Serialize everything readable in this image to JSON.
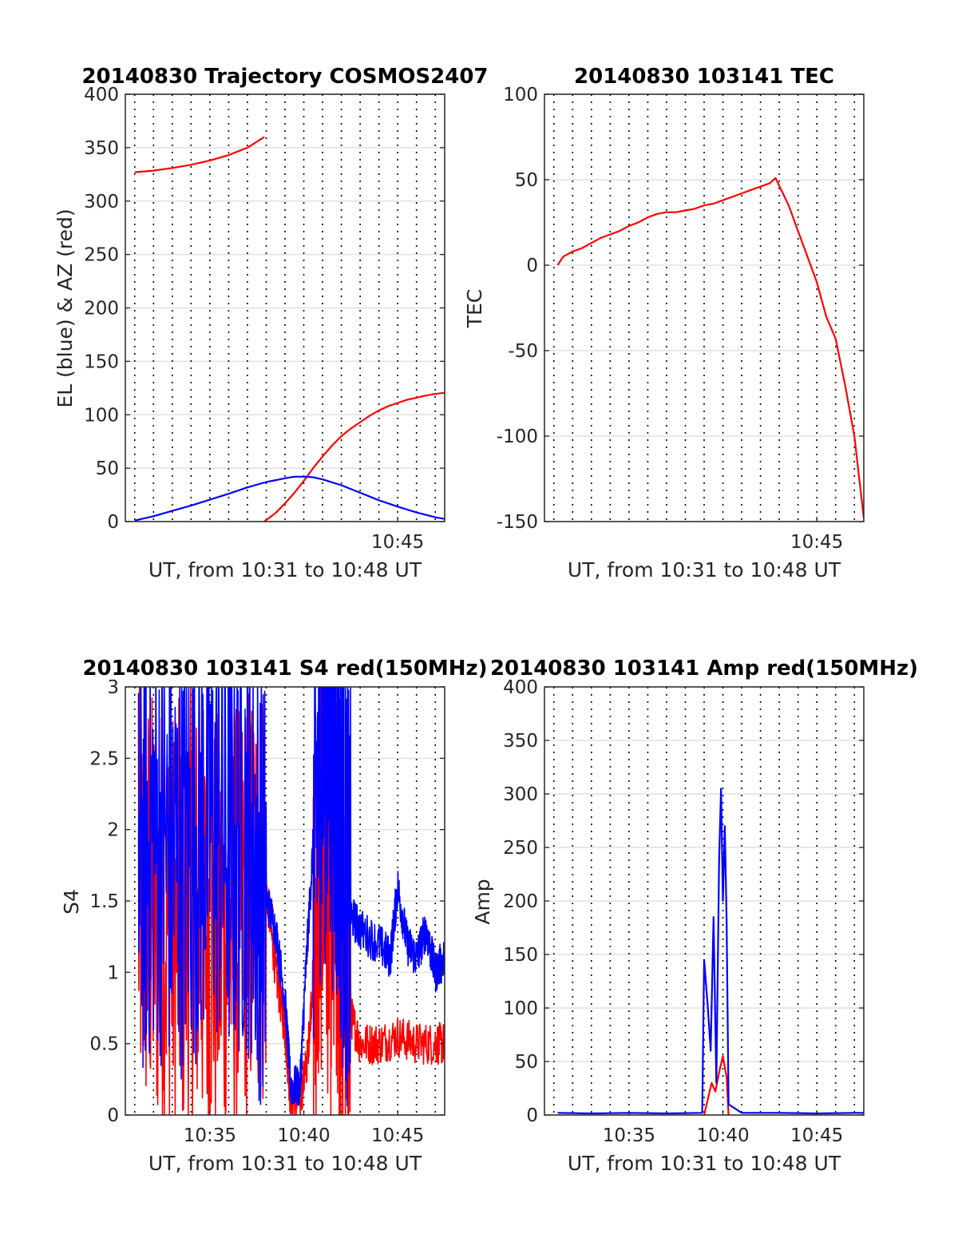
{
  "chart_data": [
    {
      "type": "line",
      "title": "20140830 Trajectory COSMOS2407",
      "xlabel": "UT, from 10:31 to 10:48 UT",
      "ylabel": "EL (blue) & AZ (red)",
      "xlim": [
        10.5,
        27.5
      ],
      "ylim": [
        0,
        400
      ],
      "yticks": [
        0,
        50,
        100,
        150,
        200,
        250,
        300,
        350,
        400
      ],
      "xtick_labels": [
        {
          "x": 25,
          "label": "10:45"
        }
      ],
      "grid": true,
      "series": [
        {
          "color": "#ff0000",
          "segments": [
            [
              [
                11,
                327
              ],
              [
                12,
                328.5
              ],
              [
                13,
                331
              ],
              [
                14,
                334
              ],
              [
                15,
                338
              ],
              [
                16,
                343
              ],
              [
                17,
                350
              ],
              [
                17.9,
                360
              ]
            ],
            [
              [
                17.9,
                0
              ],
              [
                18.5,
                8
              ],
              [
                19,
                17
              ],
              [
                19.5,
                27
              ],
              [
                20,
                38
              ],
              [
                20.5,
                50
              ],
              [
                21,
                61
              ],
              [
                21.5,
                71
              ],
              [
                22,
                80
              ],
              [
                22.5,
                87
              ],
              [
                23,
                93
              ],
              [
                23.5,
                99
              ],
              [
                24,
                104
              ],
              [
                24.5,
                108
              ],
              [
                25,
                111
              ],
              [
                25.5,
                114
              ],
              [
                26,
                116
              ],
              [
                26.5,
                118
              ],
              [
                27,
                119.5
              ],
              [
                27.5,
                120.5
              ]
            ]
          ]
        },
        {
          "color": "#0000ff",
          "segments": [
            [
              [
                11,
                1
              ],
              [
                12,
                5
              ],
              [
                13,
                10
              ],
              [
                14,
                15
              ],
              [
                15,
                20.5
              ],
              [
                16,
                26
              ],
              [
                17,
                32
              ],
              [
                18,
                37
              ],
              [
                19,
                40.5
              ],
              [
                19.5,
                42
              ],
              [
                20,
                42
              ],
              [
                20.5,
                41.5
              ],
              [
                21,
                39.5
              ],
              [
                22,
                34
              ],
              [
                23,
                27
              ],
              [
                24,
                20
              ],
              [
                25,
                14
              ],
              [
                26,
                8.5
              ],
              [
                27,
                4
              ],
              [
                27.5,
                2.5
              ]
            ]
          ]
        }
      ]
    },
    {
      "type": "line",
      "title": "20140830 103141 TEC",
      "xlabel": "UT, from 10:31 to 10:48 UT",
      "ylabel": "TEC",
      "xlim": [
        10.5,
        27.5
      ],
      "ylim": [
        -150,
        100
      ],
      "yticks": [
        -150,
        -100,
        -50,
        0,
        50,
        100
      ],
      "xtick_labels": [
        {
          "x": 25,
          "label": "10:45"
        }
      ],
      "grid": true,
      "series": [
        {
          "color": "#ff0000",
          "segments": [
            [
              [
                11.2,
                0
              ],
              [
                11.5,
                5
              ],
              [
                12,
                8
              ],
              [
                12.5,
                10
              ],
              [
                13,
                13
              ],
              [
                13.5,
                16
              ],
              [
                14,
                18
              ],
              [
                14.5,
                20
              ],
              [
                15,
                23
              ],
              [
                15.5,
                25
              ],
              [
                16,
                28
              ],
              [
                16.5,
                30
              ],
              [
                17,
                31
              ],
              [
                17.5,
                31
              ],
              [
                18,
                32
              ],
              [
                18.5,
                33
              ],
              [
                19,
                35
              ],
              [
                19.5,
                36
              ],
              [
                20,
                38
              ],
              [
                20.5,
                40
              ],
              [
                21,
                42
              ],
              [
                21.5,
                44
              ],
              [
                22,
                46
              ],
              [
                22.5,
                48
              ],
              [
                22.8,
                51
              ],
              [
                23.5,
                35
              ],
              [
                24,
                20
              ],
              [
                24.5,
                5
              ],
              [
                25,
                -10
              ],
              [
                25.5,
                -30
              ],
              [
                26,
                -43
              ],
              [
                26.5,
                -70
              ],
              [
                27,
                -100
              ],
              [
                27.5,
                -148
              ]
            ]
          ]
        }
      ]
    },
    {
      "type": "line",
      "title": "20140830 103141 S4 red(150MHz)",
      "xlabel": "UT, from 10:31 to 10:48 UT",
      "ylabel": "S4",
      "xlim": [
        10.5,
        27.5
      ],
      "ylim": [
        0,
        3
      ],
      "yticks": [
        0,
        0.5,
        1,
        1.5,
        2,
        2.5,
        3
      ],
      "ytick_labels": [
        "0",
        "0.5",
        "1",
        "1.5",
        "2",
        "2.5",
        "3"
      ],
      "xtick_labels": [
        {
          "x": 15,
          "label": "10:35"
        },
        {
          "x": 20,
          "label": "10:40"
        },
        {
          "x": 25,
          "label": "10:45"
        }
      ],
      "grid": true,
      "noisy": true,
      "series": [
        {
          "color": "#ff0000",
          "segments": [
            [
              [
                11.2,
                1.5
              ],
              [
                12,
                1.4
              ],
              [
                13,
                1.3
              ],
              [
                14,
                1.4
              ],
              [
                15,
                1.3
              ],
              [
                16,
                1.2
              ],
              [
                17,
                1.5
              ],
              [
                18,
                1.6
              ],
              [
                18.5,
                1.0
              ],
              [
                19,
                0.6
              ],
              [
                19.3,
                0.1
              ],
              [
                19.8,
                0.1
              ],
              [
                20.2,
                0.4
              ],
              [
                20.6,
                1.2
              ],
              [
                21,
                2.0
              ],
              [
                21.5,
                1.5
              ],
              [
                22,
                1.2
              ],
              [
                22.5,
                0.7
              ],
              [
                23,
                0.5
              ],
              [
                24,
                0.5
              ],
              [
                25,
                0.55
              ],
              [
                26,
                0.5
              ],
              [
                27,
                0.5
              ],
              [
                27.5,
                0.5
              ]
            ]
          ]
        },
        {
          "color": "#0000ff",
          "segments": [
            [
              [
                11.2,
                1.7
              ],
              [
                12,
                2.0
              ],
              [
                13,
                1.8
              ],
              [
                14,
                1.9
              ],
              [
                15,
                2.1
              ],
              [
                16,
                1.9
              ],
              [
                17,
                2.0
              ],
              [
                17.8,
                1.6
              ],
              [
                18.5,
                1.3
              ],
              [
                19,
                0.8
              ],
              [
                19.3,
                0.2
              ],
              [
                19.8,
                0.2
              ],
              [
                20.1,
                1.0
              ],
              [
                20.5,
                1.9
              ],
              [
                21,
                2.7
              ],
              [
                21.5,
                2.5
              ],
              [
                22,
                2.0
              ],
              [
                22.5,
                1.4
              ],
              [
                23,
                1.3
              ],
              [
                24,
                1.2
              ],
              [
                24.6,
                1.1
              ],
              [
                25,
                1.6
              ],
              [
                25.5,
                1.2
              ],
              [
                26,
                1.1
              ],
              [
                26.5,
                1.3
              ],
              [
                27,
                1.0
              ],
              [
                27.5,
                1.1
              ]
            ]
          ]
        }
      ]
    },
    {
      "type": "line",
      "title": "20140830 103141 Amp red(150MHz)",
      "xlabel": "UT, from 10:31 to 10:48 UT",
      "ylabel": "Amp",
      "xlim": [
        10.5,
        27.5
      ],
      "ylim": [
        0,
        400
      ],
      "yticks": [
        0,
        50,
        100,
        150,
        200,
        250,
        300,
        350,
        400
      ],
      "xtick_labels": [
        {
          "x": 15,
          "label": "10:35"
        },
        {
          "x": 20,
          "label": "10:40"
        },
        {
          "x": 25,
          "label": "10:45"
        }
      ],
      "grid": true,
      "series": [
        {
          "color": "#ff0000",
          "segments": [
            [
              [
                19.0,
                0
              ],
              [
                19.2,
                15
              ],
              [
                19.4,
                30
              ],
              [
                19.6,
                22
              ],
              [
                19.8,
                40
              ],
              [
                20.0,
                55
              ],
              [
                20.2,
                35
              ],
              [
                20.3,
                0
              ]
            ]
          ]
        },
        {
          "color": "#0000ff",
          "segments": [
            [
              [
                11.2,
                2
              ],
              [
                13,
                1.5
              ],
              [
                15,
                2
              ],
              [
                17,
                1.5
              ],
              [
                18.9,
                2
              ],
              [
                19.0,
                145
              ],
              [
                19.2,
                100
              ],
              [
                19.35,
                60
              ],
              [
                19.5,
                185
              ],
              [
                19.65,
                30
              ],
              [
                19.8,
                240
              ],
              [
                19.9,
                305
              ],
              [
                20.0,
                200
              ],
              [
                20.1,
                270
              ],
              [
                20.2,
                180
              ],
              [
                20.3,
                10
              ],
              [
                21,
                2
              ],
              [
                23,
                2
              ],
              [
                25,
                1.5
              ],
              [
                27,
                2
              ],
              [
                27.5,
                2
              ]
            ]
          ]
        }
      ]
    }
  ]
}
